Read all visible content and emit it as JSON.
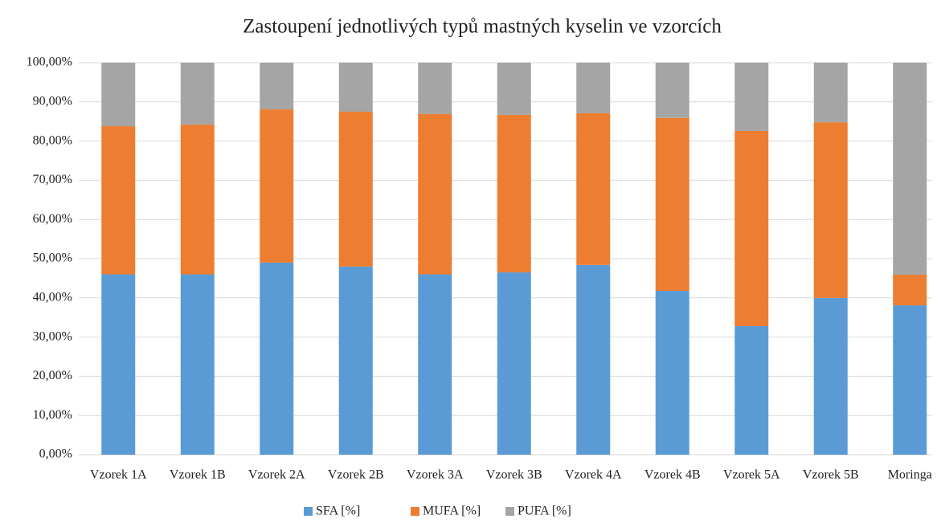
{
  "chart_data": {
    "type": "stacked_bar",
    "title": "Zastoupení jednotlivých typů mastných kyselin ve vzorcích",
    "categories": [
      "Vzorek 1A",
      "Vzorek 1B",
      "Vzorek 2A",
      "Vzorek 2B",
      "Vzorek 3A",
      "Vzorek 3B",
      "Vzorek 4A",
      "Vzorek 4B",
      "Vzorek 5A",
      "Vzorek 5B",
      "Moringa"
    ],
    "series": [
      {
        "name": "SFA [%]",
        "color": "#5b9bd5",
        "values": [
          46.0,
          46.0,
          49.0,
          48.0,
          46.0,
          46.5,
          48.4,
          41.8,
          32.8,
          40.0,
          38.1
        ]
      },
      {
        "name": "MUFA [%]",
        "color": "#ed7d31",
        "values": [
          37.8,
          38.2,
          39.1,
          39.5,
          40.9,
          40.2,
          38.7,
          44.1,
          49.8,
          44.8,
          7.8
        ]
      },
      {
        "name": "PUFA [%]",
        "color": "#a5a5a5",
        "values": [
          16.2,
          15.8,
          11.9,
          12.5,
          13.1,
          13.3,
          12.9,
          14.1,
          17.4,
          15.2,
          54.1
        ]
      }
    ],
    "ylim": [
      0,
      100
    ],
    "yticks": [
      {
        "value": 0,
        "label": "0,00%"
      },
      {
        "value": 10,
        "label": "10,00%"
      },
      {
        "value": 20,
        "label": "20,00%"
      },
      {
        "value": 30,
        "label": "30,00%"
      },
      {
        "value": 40,
        "label": "40,00%"
      },
      {
        "value": 50,
        "label": "50,00%"
      },
      {
        "value": 60,
        "label": "60,00%"
      },
      {
        "value": 70,
        "label": "70,00%"
      },
      {
        "value": 80,
        "label": "80,00%"
      },
      {
        "value": 90,
        "label": "90,00%"
      },
      {
        "value": 100,
        "label": "100,00%"
      }
    ],
    "grid": true,
    "legend": "bottom"
  }
}
